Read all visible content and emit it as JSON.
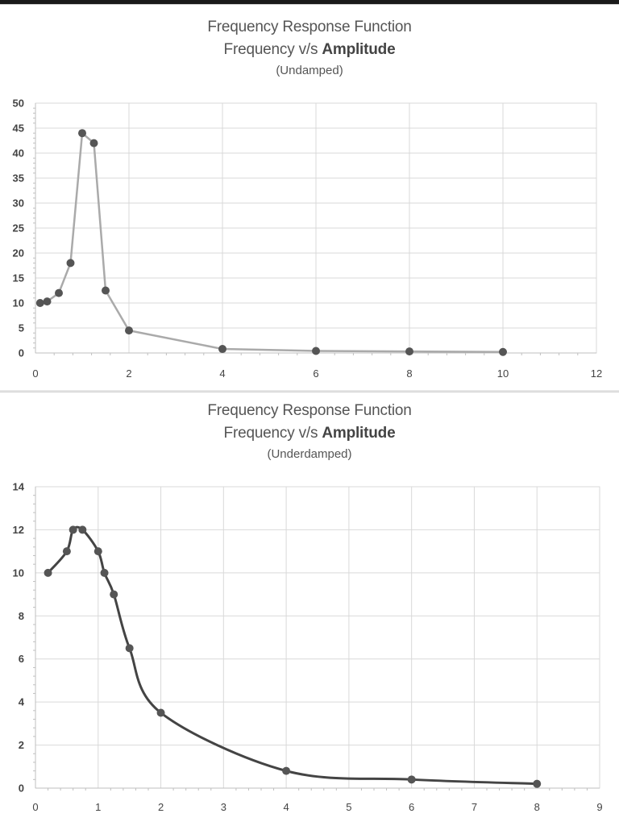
{
  "chart_data": [
    {
      "type": "line",
      "title": "Frequency Response Function",
      "subtitle_prefix": "Frequency v/s ",
      "subtitle_bold": "Amplitude",
      "caption": "(Undamped)",
      "xlim": [
        0,
        12
      ],
      "ylim": [
        0,
        50
      ],
      "x_ticks": [
        0,
        2,
        4,
        6,
        8,
        10,
        12
      ],
      "y_ticks": [
        0,
        5,
        10,
        15,
        20,
        25,
        30,
        35,
        40,
        45,
        50
      ],
      "grid": true,
      "smooth": false,
      "line_color": "#aaaaaa",
      "marker_color": "#555555",
      "series": [
        {
          "x": [
            0.1,
            0.25,
            0.5,
            0.75,
            1.0,
            1.25,
            1.5,
            2.0,
            4.0,
            6.0,
            8.0,
            10.0
          ],
          "y": [
            10,
            10.3,
            12,
            18,
            44,
            42,
            12.5,
            4.5,
            0.8,
            0.4,
            0.3,
            0.2
          ]
        }
      ]
    },
    {
      "type": "line",
      "title": "Frequency Response Function",
      "subtitle_prefix": "Frequency v/s ",
      "subtitle_bold": "Amplitude",
      "caption": "(Underdamped)",
      "xlim": [
        0,
        9
      ],
      "ylim": [
        0,
        14
      ],
      "x_ticks": [
        0,
        1,
        2,
        3,
        4,
        5,
        6,
        7,
        8,
        9
      ],
      "y_ticks": [
        0,
        2,
        4,
        6,
        8,
        10,
        12,
        14
      ],
      "grid": true,
      "smooth": true,
      "line_color": "#444444",
      "marker_color": "#555555",
      "series": [
        {
          "x": [
            0.2,
            0.5,
            0.6,
            0.75,
            1.0,
            1.1,
            1.25,
            1.5,
            2.0,
            4.0,
            6.0,
            8.0
          ],
          "y": [
            10,
            11,
            12,
            12,
            11,
            10,
            9,
            6.5,
            3.5,
            0.8,
            0.4,
            0.2
          ]
        }
      ]
    }
  ]
}
